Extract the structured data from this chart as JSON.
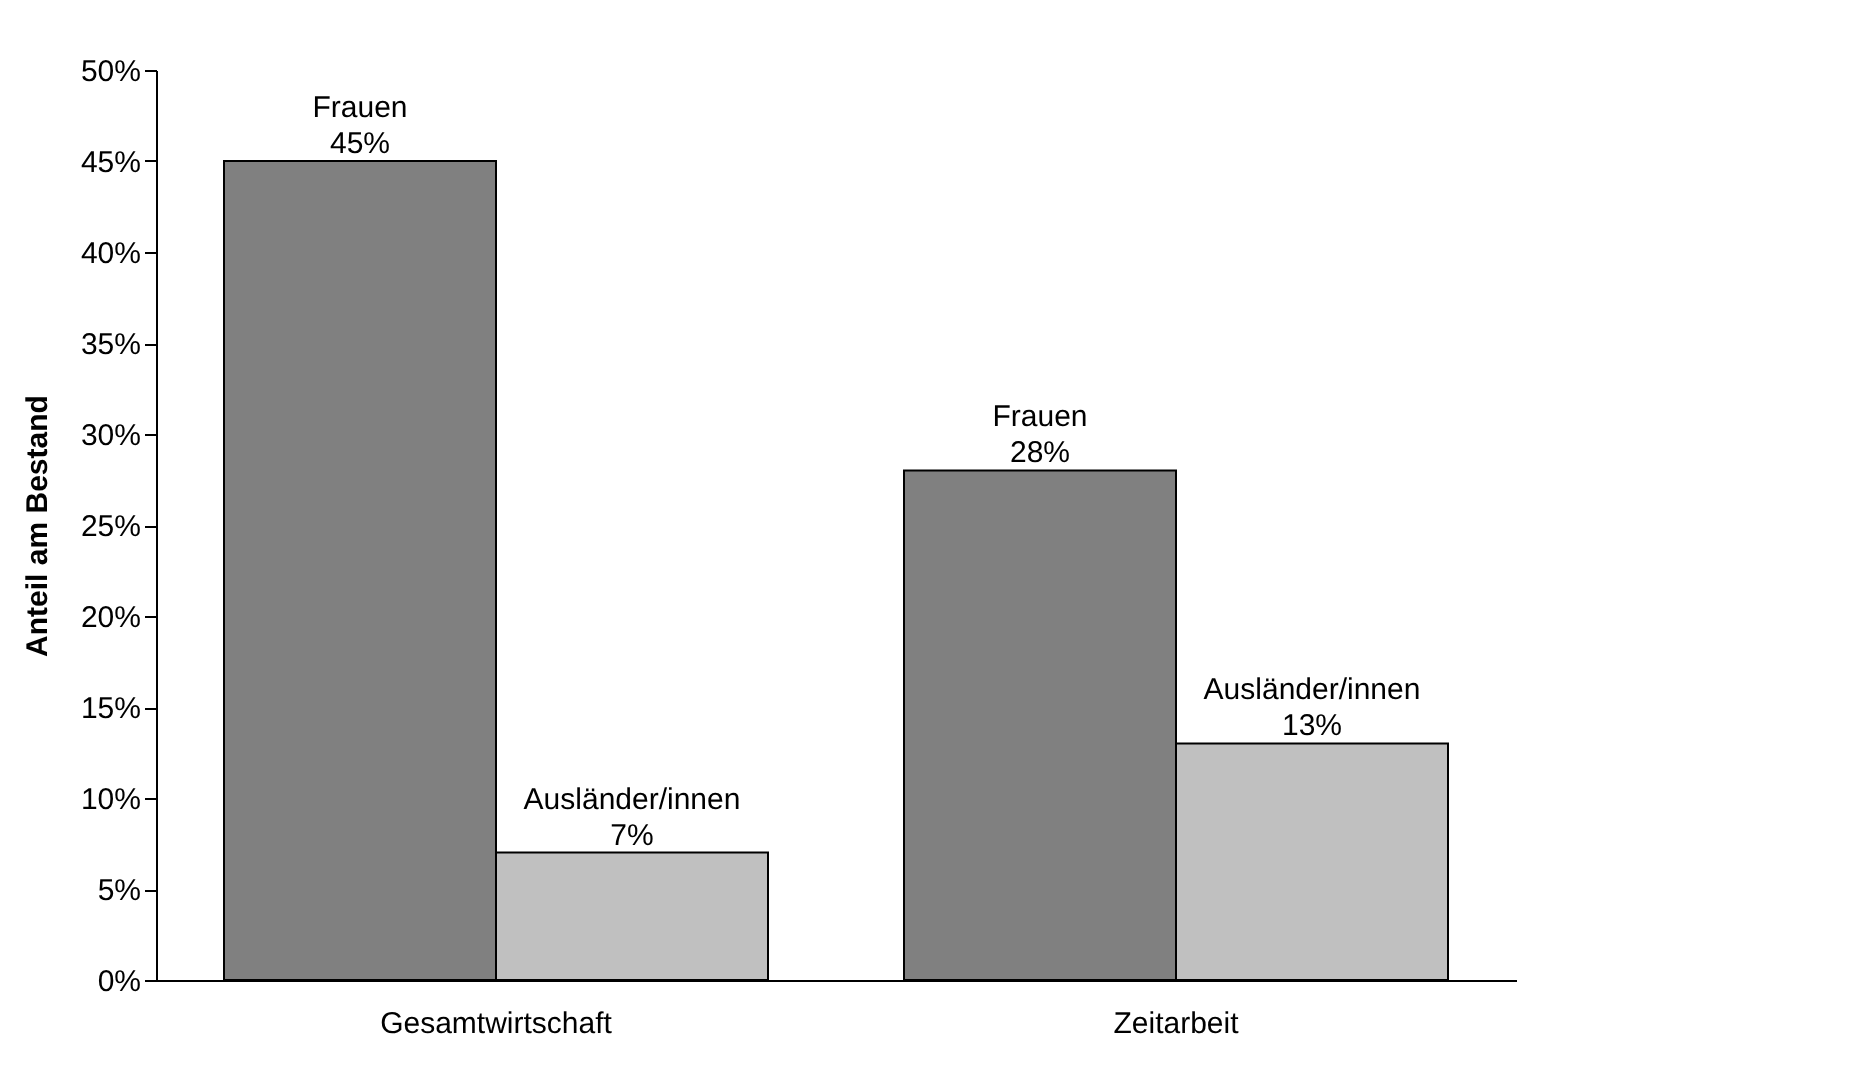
{
  "chart_data": {
    "type": "bar",
    "ylabel": "Anteil am Bestand",
    "categories": [
      "Gesamtwirtschaft",
      "Zeitarbeit"
    ],
    "series": [
      {
        "name": "Frauen",
        "color": "#808080",
        "values": [
          45,
          28
        ],
        "value_labels": [
          "45%",
          "28%"
        ]
      },
      {
        "name": "Ausländer/innen",
        "color": "#c0c0c0",
        "values": [
          7,
          13
        ],
        "value_labels": [
          "7%",
          "13%"
        ]
      }
    ],
    "ylim": [
      0,
      50
    ],
    "yticks": [
      {
        "value": 0,
        "label": "0%"
      },
      {
        "value": 5,
        "label": "5%"
      },
      {
        "value": 10,
        "label": "10%"
      },
      {
        "value": 15,
        "label": "15%"
      },
      {
        "value": 20,
        "label": "20%"
      },
      {
        "value": 25,
        "label": "25%"
      },
      {
        "value": 30,
        "label": "30%"
      },
      {
        "value": 35,
        "label": "35%"
      },
      {
        "value": 40,
        "label": "40%"
      },
      {
        "value": 45,
        "label": "45%"
      },
      {
        "value": 50,
        "label": "50%"
      }
    ],
    "grid": false,
    "legend": false
  }
}
